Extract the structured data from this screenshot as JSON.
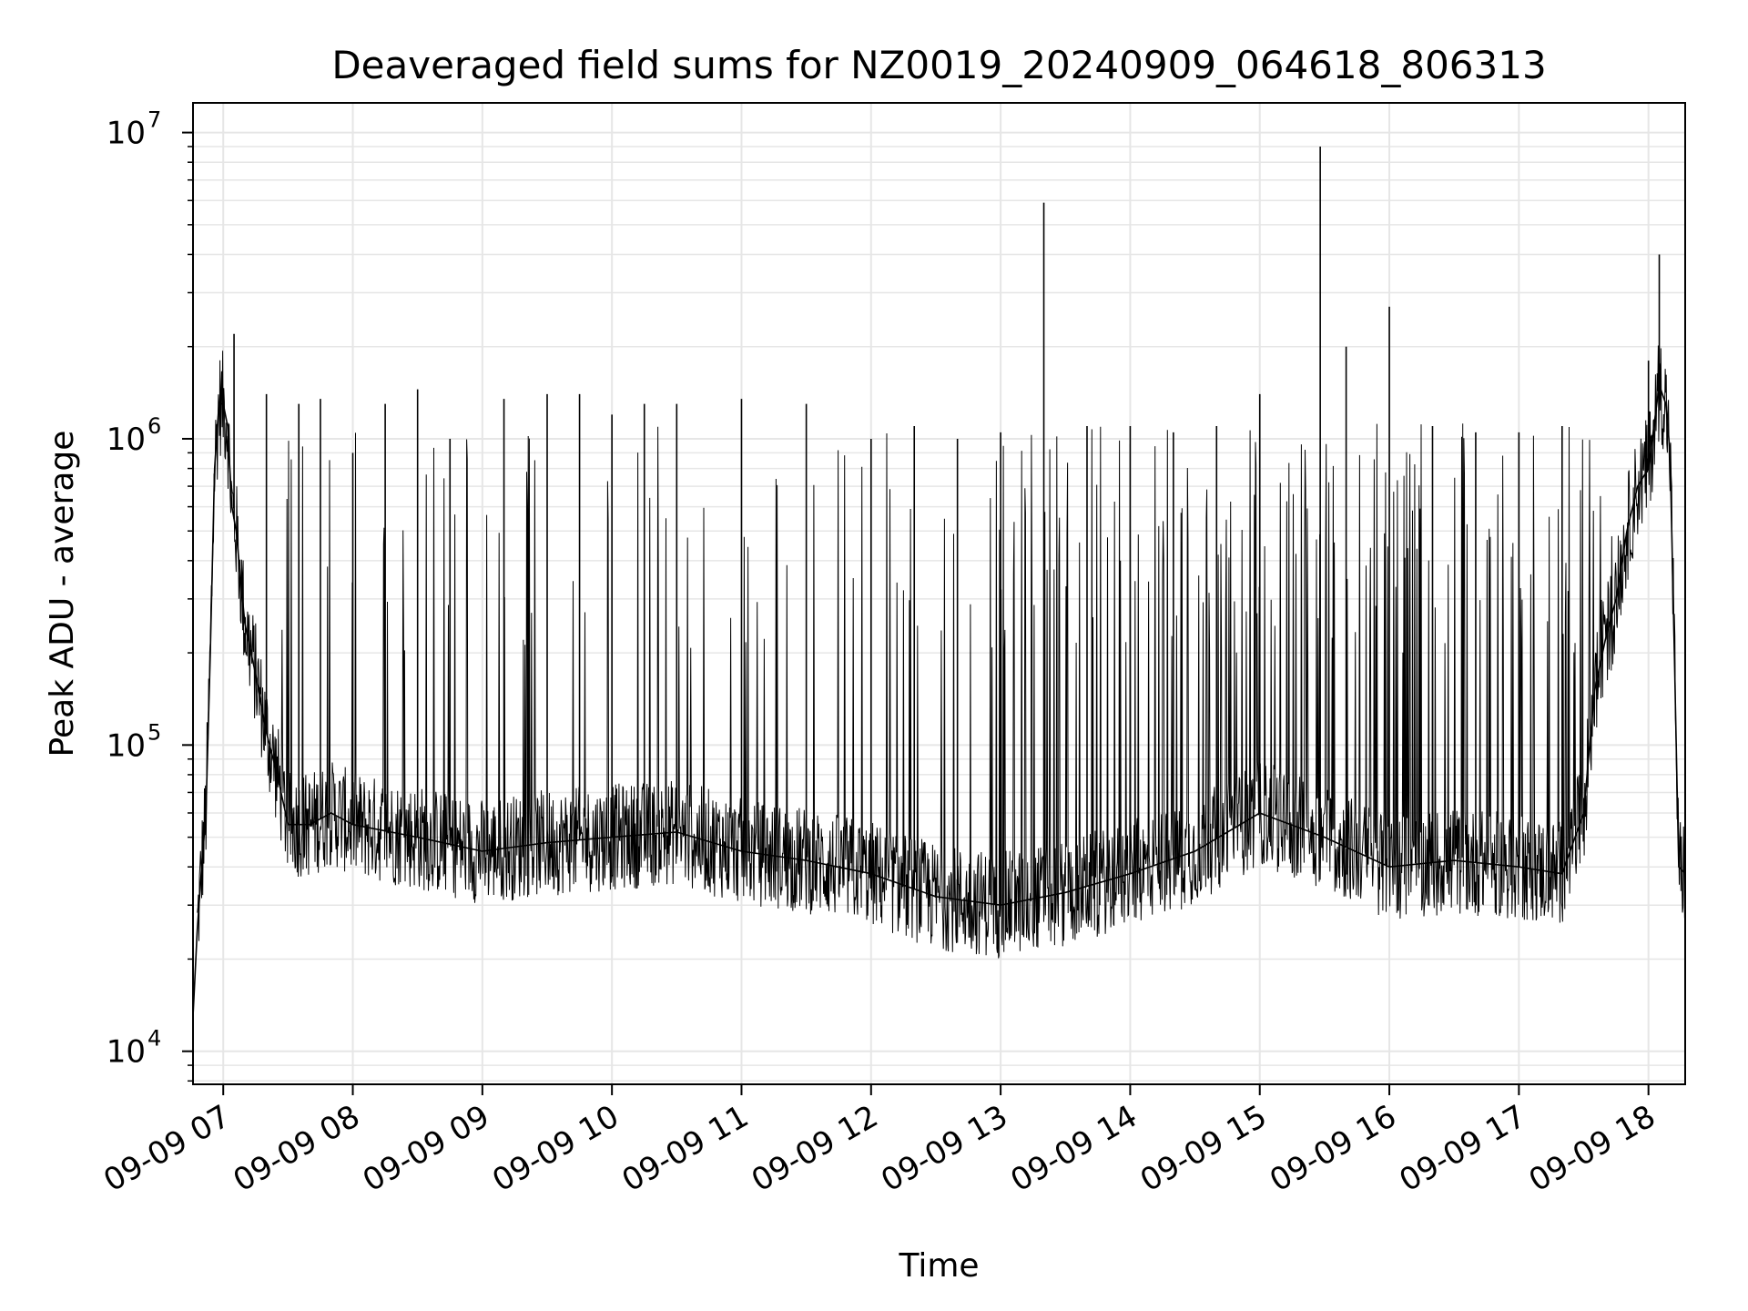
{
  "chart_data": {
    "type": "line",
    "title": "Deaveraged field sums for NZ0019_20240909_064618_806313",
    "xlabel": "Time",
    "ylabel": "Peak ADU - average",
    "yscale": "log",
    "ylim": [
      7800,
      12500000
    ],
    "xlim": [
      "09-09 06:46",
      "09-09 18:17"
    ],
    "grid": true,
    "colors": {
      "line": "#000000",
      "grid": "#e6e6e6",
      "axes": "#000000"
    },
    "x_ticks": [
      {
        "time": "09-09 07:00",
        "label": "09-09 07"
      },
      {
        "time": "09-09 08:00",
        "label": "09-09 08"
      },
      {
        "time": "09-09 09:00",
        "label": "09-09 09"
      },
      {
        "time": "09-09 10:00",
        "label": "09-09 10"
      },
      {
        "time": "09-09 11:00",
        "label": "09-09 11"
      },
      {
        "time": "09-09 12:00",
        "label": "09-09 12"
      },
      {
        "time": "09-09 13:00",
        "label": "09-09 13"
      },
      {
        "time": "09-09 14:00",
        "label": "09-09 14"
      },
      {
        "time": "09-09 15:00",
        "label": "09-09 15"
      },
      {
        "time": "09-09 16:00",
        "label": "09-09 16"
      },
      {
        "time": "09-09 17:00",
        "label": "09-09 17"
      },
      {
        "time": "09-09 18:00",
        "label": "09-09 18"
      }
    ],
    "y_ticks": [
      {
        "value": 10000,
        "base": "10",
        "exp": "4"
      },
      {
        "value": 100000,
        "base": "10",
        "exp": "5"
      },
      {
        "value": 1000000,
        "base": "10",
        "exp": "6"
      },
      {
        "value": 10000000,
        "base": "10",
        "exp": "7"
      }
    ],
    "series": [
      {
        "x": [
          "09-09 06:46",
          "09-09 06:48",
          "09-09 06:50",
          "09-09 06:52",
          "09-09 06:54",
          "09-09 06:56",
          "09-09 06:58",
          "09-09 07:00",
          "09-09 07:02",
          "09-09 07:04",
          "09-09 07:06",
          "09-09 07:10",
          "09-09 07:15",
          "09-09 07:20",
          "09-09 07:25",
          "09-09 07:30",
          "09-09 07:40",
          "09-09 07:50",
          "09-09 08:00",
          "09-09 08:30",
          "09-09 09:00",
          "09-09 09:30",
          "09-09 10:00",
          "09-09 10:30",
          "09-09 11:00",
          "09-09 11:30",
          "09-09 12:00",
          "09-09 12:30",
          "09-09 13:00",
          "09-09 13:30",
          "09-09 14:00",
          "09-09 14:30",
          "09-09 15:00",
          "09-09 15:30",
          "09-09 16:00",
          "09-09 16:30",
          "09-09 17:00",
          "09-09 17:20",
          "09-09 17:30",
          "09-09 17:35",
          "09-09 17:40",
          "09-09 17:45",
          "09-09 17:50",
          "09-09 17:55",
          "09-09 18:00",
          "09-09 18:05",
          "09-09 18:08",
          "09-09 18:10",
          "09-09 18:12",
          "09-09 18:14",
          "09-09 18:17"
        ],
        "values": [
          13000,
          25000,
          40000,
          60000,
          200000,
          800000,
          1300000,
          1300000,
          1100000,
          600000,
          500000,
          250000,
          170000,
          110000,
          80000,
          55000,
          55000,
          60000,
          55000,
          50000,
          45000,
          48000,
          50000,
          52000,
          45000,
          42000,
          38000,
          32000,
          30000,
          33000,
          38000,
          45000,
          60000,
          50000,
          40000,
          42000,
          40000,
          38000,
          60000,
          150000,
          220000,
          300000,
          500000,
          700000,
          800000,
          1500000,
          1300000,
          900000,
          200000,
          40000,
          38000
        ]
      },
      {
        "name": "",
        "x": [
          "09-09 07:05",
          "09-09 07:20",
          "09-09 07:35",
          "09-09 07:45",
          "09-09 08:00",
          "09-09 08:15",
          "09-09 08:30",
          "09-09 08:45",
          "09-09 09:10",
          "09-09 09:30",
          "09-09 09:45",
          "09-09 10:00",
          "09-09 10:15",
          "09-09 10:30",
          "09-09 11:00",
          "09-09 11:30",
          "09-09 12:00",
          "09-09 12:20",
          "09-09 12:40",
          "09-09 13:00",
          "09-09 13:20",
          "09-09 13:40",
          "09-09 14:00",
          "09-09 14:20",
          "09-09 14:40",
          "09-09 15:00",
          "09-09 15:28",
          "09-09 15:40",
          "09-09 16:00",
          "09-09 16:20",
          "09-09 16:40",
          "09-09 17:00",
          "09-09 17:20",
          "09-09 18:00",
          "09-09 18:05"
        ],
        "values": [
          2200000,
          1400000,
          1300000,
          1350000,
          900000,
          1300000,
          1450000,
          1000000,
          1350000,
          1400000,
          1400000,
          1200000,
          1300000,
          1300000,
          1350000,
          1300000,
          1000000,
          1100000,
          1000000,
          1050000,
          5900000,
          1100000,
          1100000,
          1050000,
          1100000,
          1400000,
          9000000,
          2000000,
          2700000,
          1100000,
          1050000,
          1050000,
          1100000,
          1800000,
          4000000
        ]
      }
    ]
  }
}
